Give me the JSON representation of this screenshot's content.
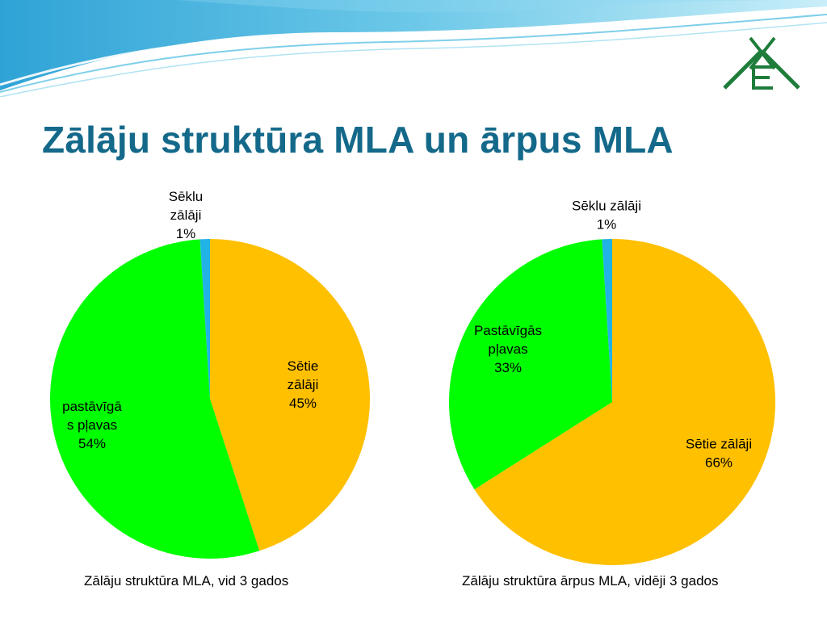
{
  "title": "Zālāju struktūra MLA un ārpus MLA",
  "colors": {
    "seti": "#ffc000",
    "pastavigas": "#00ff00",
    "seklu": "#22b3e6",
    "title": "#14698a"
  },
  "logo": {
    "icon": "xe-logo-icon"
  },
  "chart_data": [
    {
      "type": "pie",
      "title": "Zālāju struktūra MLA, vid 3 gados",
      "slices": [
        {
          "value": 45,
          "label_lines": [
            "Sētie",
            "zālāji",
            "45%"
          ]
        },
        {
          "value": 54,
          "label_lines": [
            "pastāvīgā",
            "s pļavas",
            "54%"
          ]
        },
        {
          "value": 1,
          "label_lines": [
            "Sēklu",
            "zālāji",
            "1%"
          ]
        }
      ]
    },
    {
      "type": "pie",
      "title": "Zālāju struktūra ārpus MLA, vidēji 3 gados",
      "slices": [
        {
          "value": 66,
          "label_lines": [
            "Sētie zālāji",
            "66%"
          ]
        },
        {
          "value": 33,
          "label_lines": [
            "Pastāvīgās",
            "pļavas",
            "33%"
          ]
        },
        {
          "value": 1,
          "label_lines": [
            "Sēklu zālāji",
            "1%"
          ]
        }
      ]
    }
  ]
}
